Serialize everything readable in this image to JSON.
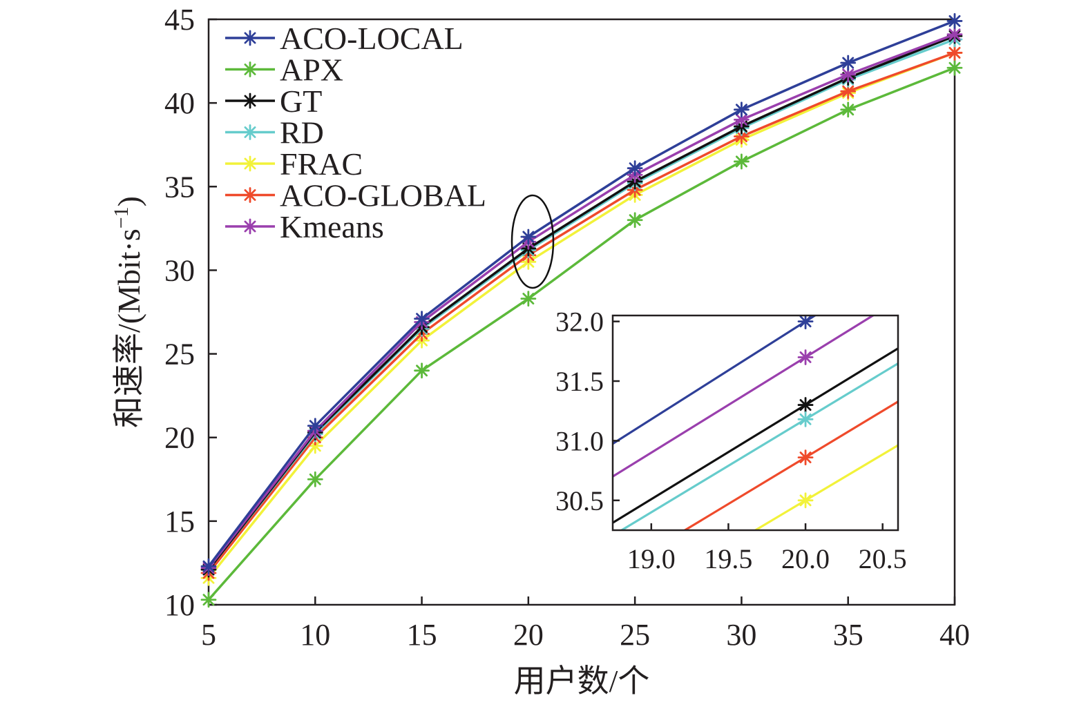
{
  "chart_data": {
    "type": "line",
    "title": "",
    "xlabel": "用户数/个",
    "ylabel": "和速率/(Mbit·s",
    "ylabel_sup": "−1",
    "ylabel_tail": ")",
    "xlim": [
      5,
      40
    ],
    "ylim": [
      10,
      45
    ],
    "x_ticks": [
      "5",
      "10",
      "15",
      "20",
      "25",
      "30",
      "35",
      "40"
    ],
    "y_ticks": [
      "10",
      "15",
      "20",
      "25",
      "30",
      "35",
      "40",
      "45"
    ],
    "x": [
      5,
      10,
      15,
      20,
      25,
      30,
      35,
      40
    ],
    "grid": false,
    "legend_position": "top-left",
    "series": [
      {
        "name": "ACO-LOCAL",
        "color": "#2e3f98",
        "values": [
          12.3,
          20.7,
          27.1,
          32.0,
          36.1,
          39.6,
          42.4,
          44.9
        ]
      },
      {
        "name": "APX",
        "color": "#5cb93a",
        "values": [
          10.3,
          17.5,
          24.0,
          28.3,
          33.0,
          36.5,
          39.6,
          42.1
        ]
      },
      {
        "name": "GT",
        "color": "#111111",
        "values": [
          12.1,
          20.3,
          26.6,
          31.3,
          35.3,
          38.6,
          41.5,
          44.0
        ]
      },
      {
        "name": "RD",
        "color": "#66cccc",
        "values": [
          12.1,
          20.2,
          26.5,
          31.2,
          35.2,
          38.5,
          41.4,
          43.8
        ]
      },
      {
        "name": "FRAC",
        "color": "#f2f23a",
        "values": [
          11.6,
          19.5,
          25.8,
          30.5,
          34.5,
          37.8,
          40.6,
          43.0
        ]
      },
      {
        "name": "ACO-GLOBAL",
        "color": "#ef4a2b",
        "values": [
          11.9,
          20.0,
          26.2,
          30.9,
          34.8,
          38.0,
          40.7,
          43.0
        ]
      },
      {
        "name": "Kmeans",
        "color": "#9a3fad",
        "values": [
          12.2,
          20.4,
          26.9,
          31.7,
          35.7,
          39.0,
          41.7,
          44.1
        ]
      }
    ],
    "inset": {
      "xlim": [
        18.75,
        20.6
      ],
      "ylim": [
        30.25,
        32.05
      ],
      "x_ticks": [
        "19.0",
        "19.5",
        "20.0",
        "20.5"
      ],
      "y_ticks": [
        "30.5",
        "31.0",
        "31.5",
        "32.0"
      ],
      "marker_x": 20.0,
      "series": [
        {
          "name": "ACO-LOCAL",
          "slope": 0.82,
          "y_at_20": 32.0
        },
        {
          "name": "Kmeans",
          "slope": 0.8,
          "y_at_20": 31.7
        },
        {
          "name": "GT",
          "slope": 0.79,
          "y_at_20": 31.3
        },
        {
          "name": "RD",
          "slope": 0.78,
          "y_at_20": 31.18
        },
        {
          "name": "ACO-GLOBAL",
          "slope": 0.78,
          "y_at_20": 30.86
        },
        {
          "name": "FRAC",
          "slope": 0.77,
          "y_at_20": 30.5
        }
      ]
    }
  }
}
